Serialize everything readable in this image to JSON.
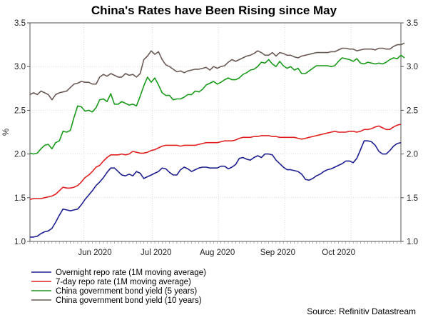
{
  "chart_data": {
    "type": "line",
    "title": "China's Rates have Been Rising since May",
    "ylabel": "%",
    "ylim": [
      1.0,
      3.5
    ],
    "yticks": [
      "1.0",
      "1.5",
      "2.0",
      "2.5",
      "3.0",
      "3.5"
    ],
    "x_month_labels": [
      "Jun 2020",
      "Jul 2020",
      "Aug 2020",
      "Sep 2020",
      "Oct 2020"
    ],
    "grid": true,
    "legend_position": "bottom-left",
    "source": "Source: Refinitiv Datastream",
    "series": [
      {
        "name": "Overnight repo rate (1M moving average)",
        "color": "#1f1f8f",
        "values": [
          1.05,
          1.05,
          1.06,
          1.09,
          1.11,
          1.12,
          1.15,
          1.22,
          1.3,
          1.37,
          1.36,
          1.35,
          1.36,
          1.37,
          1.42,
          1.48,
          1.53,
          1.58,
          1.64,
          1.68,
          1.73,
          1.79,
          1.84,
          1.84,
          1.8,
          1.76,
          1.75,
          1.77,
          1.75,
          1.8,
          1.78,
          1.72,
          1.74,
          1.76,
          1.78,
          1.8,
          1.84,
          1.83,
          1.79,
          1.76,
          1.76,
          1.82,
          1.85,
          1.83,
          1.8,
          1.82,
          1.84,
          1.85,
          1.85,
          1.84,
          1.84,
          1.84,
          1.86,
          1.86,
          1.83,
          1.85,
          1.88,
          1.95,
          1.96,
          1.94,
          1.93,
          1.96,
          1.98,
          1.96,
          2.0,
          2.0,
          1.99,
          1.93,
          1.89,
          1.85,
          1.82,
          1.82,
          1.81,
          1.8,
          1.77,
          1.71,
          1.7,
          1.72,
          1.75,
          1.77,
          1.8,
          1.82,
          1.83,
          1.85,
          1.87,
          1.89,
          1.92,
          1.92,
          1.9,
          1.95,
          2.05,
          2.15,
          2.15,
          2.14,
          2.1,
          2.03,
          2.0,
          2.0,
          2.04,
          2.09,
          2.12,
          2.13
        ]
      },
      {
        "name": "7-day repo rate (1M moving average)",
        "color": "#e02020",
        "values": [
          1.48,
          1.49,
          1.49,
          1.49,
          1.5,
          1.51,
          1.52,
          1.54,
          1.58,
          1.62,
          1.61,
          1.61,
          1.62,
          1.64,
          1.68,
          1.73,
          1.76,
          1.8,
          1.85,
          1.87,
          1.92,
          1.96,
          1.99,
          1.99,
          1.99,
          2.0,
          1.99,
          2.0,
          2.03,
          2.02,
          2.01,
          2.01,
          2.02,
          2.04,
          2.05,
          2.07,
          2.09,
          2.1,
          2.1,
          2.1,
          2.1,
          2.09,
          2.1,
          2.1,
          2.1,
          2.1,
          2.11,
          2.12,
          2.13,
          2.13,
          2.13,
          2.13,
          2.14,
          2.15,
          2.15,
          2.15,
          2.16,
          2.18,
          2.19,
          2.19,
          2.19,
          2.2,
          2.2,
          2.21,
          2.21,
          2.21,
          2.2,
          2.2,
          2.19,
          2.19,
          2.19,
          2.19,
          2.19,
          2.18,
          2.17,
          2.18,
          2.19,
          2.2,
          2.21,
          2.22,
          2.23,
          2.24,
          2.25,
          2.26,
          2.25,
          2.25,
          2.25,
          2.26,
          2.26,
          2.25,
          2.26,
          2.28,
          2.28,
          2.29,
          2.31,
          2.32,
          2.3,
          2.28,
          2.28,
          2.31,
          2.33,
          2.34
        ]
      },
      {
        "name": "China government bond yield (5 years)",
        "color": "#1a9a1a",
        "values": [
          2.01,
          2.0,
          2.01,
          2.06,
          2.1,
          2.11,
          2.06,
          2.13,
          2.15,
          2.26,
          2.25,
          2.27,
          2.42,
          2.55,
          2.54,
          2.49,
          2.5,
          2.48,
          2.53,
          2.62,
          2.63,
          2.6,
          2.69,
          2.57,
          2.57,
          2.6,
          2.58,
          2.56,
          2.57,
          2.55,
          2.66,
          2.78,
          2.88,
          2.82,
          2.87,
          2.79,
          2.7,
          2.67,
          2.67,
          2.62,
          2.63,
          2.63,
          2.65,
          2.68,
          2.68,
          2.72,
          2.71,
          2.74,
          2.79,
          2.81,
          2.83,
          2.8,
          2.82,
          2.85,
          2.87,
          2.85,
          2.85,
          2.87,
          2.91,
          2.93,
          2.96,
          2.97,
          3.0,
          3.05,
          3.04,
          3.08,
          3.03,
          3.0,
          3.06,
          3.01,
          2.98,
          3.0,
          2.96,
          2.98,
          2.92,
          2.92,
          2.95,
          2.98,
          3.01,
          3.01,
          3.01,
          3.01,
          3.0,
          3.01,
          3.06,
          3.1,
          3.09,
          3.08,
          3.06,
          3.09,
          3.04,
          3.03,
          3.05,
          3.04,
          3.03,
          3.04,
          3.03,
          3.05,
          3.08,
          3.1,
          3.09,
          3.13,
          3.1
        ]
      },
      {
        "name": "China government bond yield (10 years)",
        "color": "#6a5a55",
        "values": [
          2.68,
          2.7,
          2.68,
          2.72,
          2.7,
          2.68,
          2.62,
          2.68,
          2.7,
          2.71,
          2.72,
          2.76,
          2.8,
          2.81,
          2.83,
          2.82,
          2.82,
          2.8,
          2.8,
          2.88,
          2.91,
          2.89,
          2.92,
          2.9,
          2.88,
          2.88,
          2.92,
          2.9,
          2.91,
          2.88,
          2.92,
          3.08,
          3.12,
          3.18,
          3.14,
          3.17,
          3.08,
          3.02,
          3.0,
          2.97,
          2.94,
          2.95,
          2.93,
          2.95,
          2.96,
          2.97,
          2.97,
          2.98,
          2.99,
          2.96,
          3.0,
          2.98,
          3.0,
          3.01,
          3.05,
          3.08,
          3.06,
          3.08,
          3.1,
          3.12,
          3.13,
          3.15,
          3.18,
          3.16,
          3.13,
          3.13,
          3.16,
          3.12,
          3.16,
          3.15,
          3.13,
          3.13,
          3.11,
          3.1,
          3.12,
          3.13,
          3.14,
          3.15,
          3.16,
          3.16,
          3.16,
          3.16,
          3.17,
          3.17,
          3.19,
          3.21,
          3.21,
          3.2,
          3.2,
          3.18,
          3.19,
          3.2,
          3.2,
          3.2,
          3.19,
          3.21,
          3.21,
          3.2,
          3.2,
          3.23,
          3.25,
          3.25,
          3.27
        ]
      }
    ]
  }
}
